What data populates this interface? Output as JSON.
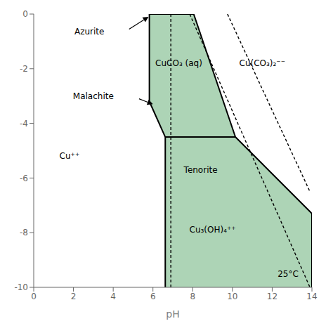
{
  "chart_data": {
    "type": "line",
    "xlabel": "pH",
    "xlim": [
      0,
      14
    ],
    "ylim": [
      -10,
      0
    ],
    "xticks": [
      0,
      2,
      4,
      6,
      8,
      10,
      12,
      14
    ],
    "yticks": [
      0,
      -2,
      -4,
      -6,
      -8,
      -10
    ],
    "series": [
      {
        "type": "area",
        "color": "#8ec49a",
        "x": [
          5.82,
          8.05,
          10.15,
          6.62,
          5.82
        ],
        "values": [
          0,
          0,
          -4.5,
          -4.5,
          -3.2
        ]
      },
      {
        "type": "area",
        "color": "#8ec49a",
        "x": [
          6.62,
          10.15,
          14.0,
          14.0,
          6.62
        ],
        "values": [
          -4.5,
          -4.5,
          -7.3,
          -10.0,
          -10.0
        ]
      },
      {
        "type": "line",
        "color": "black",
        "line_style": "solid",
        "x": [
          5.82,
          5.82
        ],
        "values": [
          0,
          -3.2
        ]
      },
      {
        "type": "line",
        "color": "black",
        "line_style": "solid",
        "x": [
          5.82,
          8.05
        ],
        "values": [
          0,
          0
        ]
      },
      {
        "type": "line",
        "color": "black",
        "line_style": "solid",
        "x": [
          8.05,
          10.15
        ],
        "values": [
          0,
          -4.5
        ]
      },
      {
        "type": "line",
        "color": "black",
        "line_style": "solid",
        "x": [
          5.82,
          6.62
        ],
        "values": [
          -3.2,
          -4.5
        ]
      },
      {
        "type": "line",
        "color": "black",
        "line_style": "solid",
        "x": [
          6.62,
          10.15
        ],
        "values": [
          -4.5,
          -4.5
        ]
      },
      {
        "type": "line",
        "color": "black",
        "line_style": "solid",
        "x": [
          10.15,
          14.0
        ],
        "values": [
          -4.5,
          -7.3
        ]
      },
      {
        "type": "line",
        "color": "black",
        "line_style": "solid",
        "x": [
          6.62,
          6.62
        ],
        "values": [
          -4.5,
          -10.0
        ]
      },
      {
        "type": "line",
        "color": "black",
        "line_style": "solid",
        "x": [
          14.0,
          14.0
        ],
        "values": [
          -7.3,
          -10.0
        ]
      },
      {
        "type": "line",
        "color": "black",
        "line_style": "dashed",
        "x": [
          6.9,
          6.9
        ],
        "values": [
          0,
          -10.0
        ]
      },
      {
        "type": "line",
        "color": "black",
        "line_style": "dashed",
        "x": [
          7.85,
          13.9
        ],
        "values": [
          0,
          -10.0
        ]
      },
      {
        "type": "line",
        "color": "black",
        "line_style": "dashed",
        "x": [
          9.75,
          13.9
        ],
        "values": [
          0,
          -6.5
        ]
      }
    ],
    "annotations": [
      {
        "text": "CuCO₃ (aq)",
        "x": 7.3,
        "y": -1.8
      },
      {
        "text": "Cu(CO₃)₂⁻⁻",
        "x": 11.5,
        "y": -1.8
      },
      {
        "text": "Cu⁺⁺",
        "x": 1.8,
        "y": -5.2
      },
      {
        "text": "Tenorite",
        "x": 8.4,
        "y": -5.7
      },
      {
        "text": "Cu₃(OH)₄⁺⁺",
        "x": 9.0,
        "y": -7.9
      },
      {
        "text": "25°C",
        "x": 12.8,
        "y": -9.5
      },
      {
        "text": "Azurite",
        "x": 2.8,
        "y": -0.65,
        "arrow": {
          "x": [
            4.8,
            5.78
          ],
          "y": [
            -0.55,
            -0.1
          ]
        }
      },
      {
        "text": "Malachite",
        "x": 3.0,
        "y": -3.0,
        "arrow": {
          "x": [
            5.3,
            6.0
          ],
          "y": [
            -3.1,
            -3.3
          ]
        }
      }
    ]
  }
}
